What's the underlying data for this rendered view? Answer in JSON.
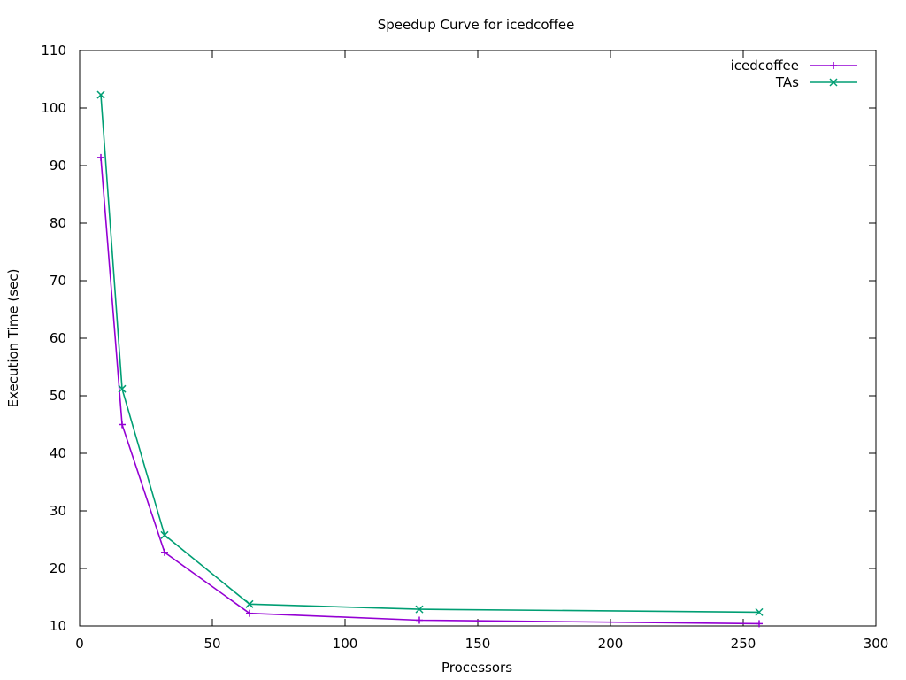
{
  "chart_data": {
    "type": "line",
    "title": "Speedup Curve for icedcoffee",
    "xlabel": "Processors",
    "ylabel": "Execution Time (sec)",
    "xlim": [
      0,
      300
    ],
    "ylim": [
      10,
      110
    ],
    "xticks": [
      0,
      50,
      100,
      150,
      200,
      250,
      300
    ],
    "yticks": [
      10,
      20,
      30,
      40,
      50,
      60,
      70,
      80,
      90,
      100,
      110
    ],
    "grid": false,
    "legend_position": "top-right",
    "series": [
      {
        "name": "icedcoffee",
        "color": "#9400d3",
        "marker": "plus",
        "x": [
          8,
          16,
          32,
          64,
          128,
          256
        ],
        "y": [
          91.4,
          45.0,
          22.8,
          12.2,
          11.0,
          10.4
        ]
      },
      {
        "name": "TAs",
        "color": "#009e73",
        "marker": "cross",
        "x": [
          8,
          16,
          32,
          64,
          128,
          256
        ],
        "y": [
          102.3,
          51.2,
          25.8,
          13.8,
          12.9,
          12.4
        ]
      }
    ]
  }
}
